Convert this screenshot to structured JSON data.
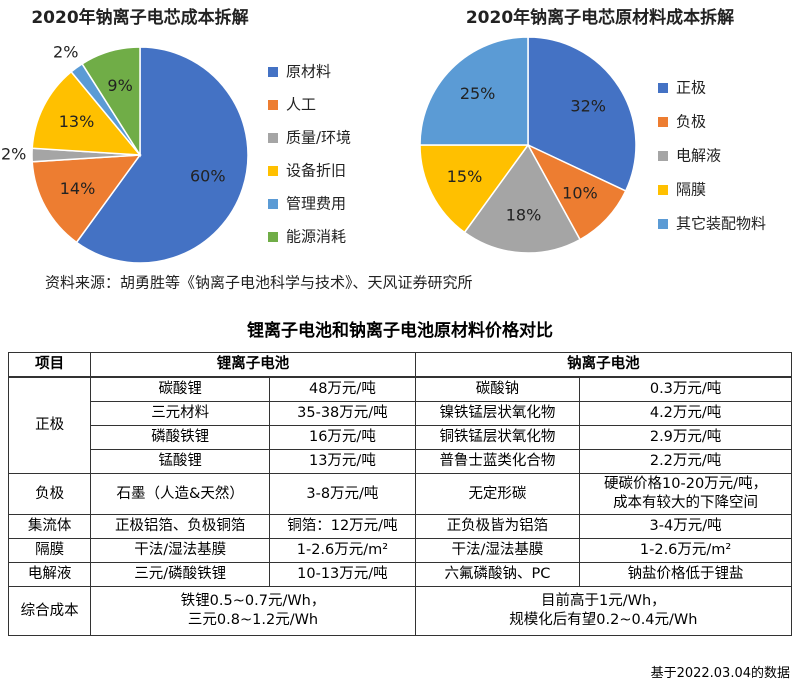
{
  "chart_data": [
    {
      "type": "pie",
      "title": "2020年钠离子电芯成本拆解",
      "categories": [
        "原材料",
        "人工",
        "质量/环境",
        "设备折旧",
        "管理费用",
        "能源消耗"
      ],
      "values": [
        60,
        14,
        2,
        13,
        2,
        9
      ],
      "value_labels": [
        "60%",
        "14%",
        "2%",
        "13%",
        "2%",
        "9%"
      ],
      "colors": [
        "#4472c4",
        "#ed7d31",
        "#a5a5a5",
        "#ffc000",
        "#5b9bd5",
        "#70ad47"
      ],
      "legend": "right"
    },
    {
      "type": "pie",
      "title": "2020年钠离子电芯原材料成本拆解",
      "categories": [
        "正极",
        "负极",
        "电解液",
        "隔膜",
        "其它装配物料"
      ],
      "values": [
        32,
        10,
        18,
        15,
        25
      ],
      "value_labels": [
        "32%",
        "10%",
        "18%",
        "15%",
        "25%"
      ],
      "colors": [
        "#4472c4",
        "#ed7d31",
        "#a5a5a5",
        "#ffc000",
        "#5b9bd5"
      ],
      "legend": "right"
    }
  ],
  "source": "资料来源：胡勇胜等《钠离子电池科学与技术》、天风证券研究所",
  "table": {
    "title": "锂离子电池和钠离子电池原材料价格对比",
    "header": [
      "项目",
      "锂离子电池",
      "钠离子电池"
    ],
    "groups": [
      {
        "item": "正极",
        "rows": [
          [
            "碳酸锂",
            "48万元/吨",
            "碳酸钠",
            "0.3万元/吨"
          ],
          [
            "三元材料",
            "35-38万元/吨",
            "镍铁锰层状氧化物",
            "4.2万元/吨"
          ],
          [
            "磷酸铁锂",
            "16万元/吨",
            "铜铁锰层状氧化物",
            "2.9万元/吨"
          ],
          [
            "锰酸锂",
            "13万元/吨",
            "普鲁士蓝类化合物",
            "2.2万元/吨"
          ]
        ]
      },
      {
        "item": "负极",
        "rows": [
          [
            "石墨（人造&天然）",
            "3-8万元/吨",
            "无定形碳",
            [
              "硬碳价格10-20万元/吨，",
              "成本有较大的下降空间"
            ]
          ]
        ]
      },
      {
        "item": "集流体",
        "rows": [
          [
            "正极铝箔、负极铜箔",
            "铜箔：12万元/吨",
            "正负极皆为铝箔",
            "3-4万元/吨"
          ]
        ]
      },
      {
        "item": "隔膜",
        "rows": [
          [
            "干法/湿法基膜",
            "1-2.6万元/m²",
            "干法/湿法基膜",
            "1-2.6万元/m²"
          ]
        ]
      },
      {
        "item": "电解液",
        "rows": [
          [
            "三元/磷酸铁锂",
            "10-13万元/吨",
            "六氟磷酸钠、PC",
            "钠盐价格低于锂盐"
          ]
        ]
      },
      {
        "item": "综合成本",
        "rows": [
          [
            [
              "铁锂0.5~0.7元/Wh，",
              "三元0.8~1.2元/Wh"
            ],
            [
              "目前高于1元/Wh，",
              "规模化后有望0.2~0.4元/Wh"
            ]
          ]
        ]
      }
    ],
    "note": "基于2022.03.04的数据"
  }
}
